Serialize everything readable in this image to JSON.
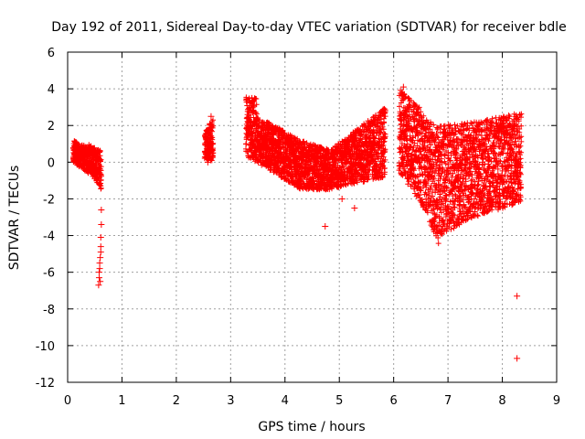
{
  "chart_data": {
    "type": "scatter",
    "title": "Day 192 of 2011, Sidereal Day-to-day VTEC variation (SDTVAR) for receiver bdle",
    "xlabel": "GPS time / hours",
    "ylabel": "SDTVAR / TECUs",
    "xlim": [
      0,
      9
    ],
    "ylim": [
      -12,
      6
    ],
    "xticks": [
      0,
      1,
      2,
      3,
      4,
      5,
      6,
      7,
      8,
      9
    ],
    "yticks": [
      -12,
      -10,
      -8,
      -6,
      -4,
      -2,
      0,
      2,
      4,
      6
    ],
    "grid": true,
    "marker": "plus",
    "color": "#ff0000",
    "series": [
      {
        "name": "SDTVAR",
        "segments": [
          {
            "x0": 0.1,
            "x1": 0.38,
            "low": [
              0.0,
              -0.6
            ],
            "high": [
              1.2,
              0.8
            ]
          },
          {
            "x0": 0.38,
            "x1": 0.62,
            "low": [
              -0.4,
              -1.5
            ],
            "high": [
              1.0,
              0.6
            ]
          },
          {
            "x0": 2.52,
            "x1": 2.68,
            "low": [
              0.2,
              0.0
            ],
            "high": [
              1.6,
              2.4
            ]
          },
          {
            "x0": 3.28,
            "x1": 3.48,
            "low": [
              0.3,
              0.0
            ],
            "high": [
              3.6,
              3.5
            ]
          },
          {
            "x0": 3.48,
            "x1": 4.3,
            "low": [
              0.0,
              -1.5
            ],
            "high": [
              2.5,
              1.2
            ]
          },
          {
            "x0": 4.3,
            "x1": 4.8,
            "low": [
              -1.5,
              -1.5
            ],
            "high": [
              1.2,
              0.7
            ]
          },
          {
            "x0": 4.8,
            "x1": 5.85,
            "low": [
              -1.5,
              -0.8
            ],
            "high": [
              0.6,
              3.0
            ]
          },
          {
            "x0": 6.1,
            "x1": 6.55,
            "low": [
              -0.5,
              -2.5
            ],
            "high": [
              4.0,
              2.8
            ]
          },
          {
            "x0": 6.55,
            "x1": 6.85,
            "low": [
              -2.5,
              -4.6
            ],
            "high": [
              2.6,
              1.8
            ]
          },
          {
            "x0": 6.85,
            "x1": 7.5,
            "low": [
              -4.0,
              -3.0
            ],
            "high": [
              2.0,
              2.2
            ]
          },
          {
            "x0": 7.5,
            "x1": 8.35,
            "low": [
              -3.0,
              -2.2
            ],
            "high": [
              2.2,
              2.7
            ]
          }
        ],
        "outliers": [
          {
            "x": 0.57,
            "y": -6.7
          },
          {
            "x": 0.58,
            "y": -6.3
          },
          {
            "x": 0.59,
            "y": -5.8
          },
          {
            "x": 0.6,
            "y": -5.2
          },
          {
            "x": 0.61,
            "y": -4.6
          },
          {
            "x": 0.61,
            "y": -4.1
          },
          {
            "x": 0.62,
            "y": -3.4
          },
          {
            "x": 0.62,
            "y": -2.6
          },
          {
            "x": 0.58,
            "y": -6.0
          },
          {
            "x": 0.6,
            "y": -6.5
          },
          {
            "x": 0.59,
            "y": -5.5
          },
          {
            "x": 0.61,
            "y": -4.9
          },
          {
            "x": 2.64,
            "y": 2.5
          },
          {
            "x": 2.62,
            "y": 2.1
          },
          {
            "x": 2.58,
            "y": 0.0
          },
          {
            "x": 4.74,
            "y": -3.5
          },
          {
            "x": 5.28,
            "y": -2.5
          },
          {
            "x": 5.05,
            "y": -2.0
          },
          {
            "x": 6.6,
            "y": -2.2
          },
          {
            "x": 6.18,
            "y": 4.1
          },
          {
            "x": 8.27,
            "y": -7.3
          },
          {
            "x": 8.27,
            "y": -10.7
          }
        ]
      }
    ]
  }
}
